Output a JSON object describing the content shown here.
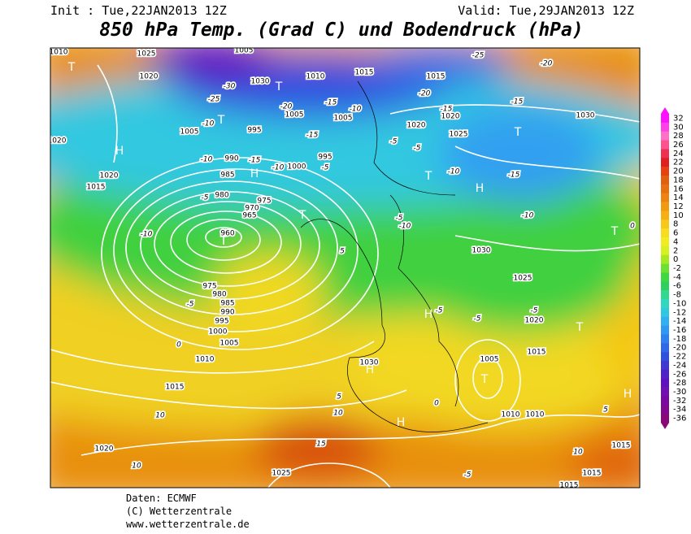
{
  "header": {
    "init": "Init : Tue,22JAN2013 12Z",
    "valid": "Valid: Tue,29JAN2013 12Z",
    "title": "850 hPa Temp. (Grad C) und Bodendruck (hPa)"
  },
  "colorbar": {
    "ticks": [
      32,
      30,
      28,
      26,
      24,
      22,
      20,
      18,
      16,
      14,
      12,
      10,
      8,
      6,
      4,
      2,
      0,
      -2,
      -4,
      -6,
      -8,
      -10,
      -12,
      -14,
      -16,
      -18,
      -20,
      -22,
      -24,
      -26,
      -28,
      -30,
      -32,
      -34,
      -36
    ],
    "colors": [
      "#ff10ff",
      "#ff40e8",
      "#ff70c8",
      "#ff5090",
      "#f03050",
      "#e02020",
      "#e84010",
      "#e06010",
      "#e87010",
      "#ee8410",
      "#f09a10",
      "#f4b014",
      "#f8c818",
      "#f8dc20",
      "#f0ec20",
      "#d8f020",
      "#a8e820",
      "#70e030",
      "#40d840",
      "#30d060",
      "#30d890",
      "#30d8c0",
      "#30c8e0",
      "#30b0f0",
      "#3098f0",
      "#3080f0",
      "#3068e8",
      "#3050e0",
      "#4038d0",
      "#5020c8",
      "#6010c0",
      "#7010b0",
      "#7808a0",
      "#800890",
      "#880878"
    ]
  },
  "pressure_labels": [
    "1025",
    "1020",
    "1005",
    "1030",
    "1010",
    "1015",
    "1015",
    "1005",
    "995",
    "990",
    "985",
    "980",
    "975",
    "970",
    "965",
    "960",
    "1005",
    "1005",
    "995",
    "1000",
    "1020",
    "1020",
    "1025",
    "1030",
    "1020",
    "1015",
    "975",
    "980",
    "985",
    "990",
    "995",
    "1000",
    "1005",
    "1010",
    "1015",
    "1030",
    "1030",
    "1025",
    "1020",
    "1015",
    "1005",
    "1010",
    "1010",
    "1020",
    "1025",
    "1015",
    "1015",
    "1015",
    "1010",
    "1020"
  ],
  "temperature_labels": [
    "-25",
    "-20",
    "-30",
    "-25",
    "-20",
    "-15",
    "-10",
    "-15",
    "-15",
    "-20",
    "-10",
    "-15",
    "-10",
    "-15",
    "-10",
    "-5",
    "-5",
    "-5",
    "-10",
    "-15",
    "-5",
    "-10",
    "-10",
    "-5",
    "-10",
    "5",
    "-5",
    "-5",
    "-5",
    "-5",
    "0",
    "5",
    "10",
    "0",
    "5",
    "10",
    "15",
    "10",
    "10",
    "-5",
    "0"
  ],
  "centers": [
    "T",
    "T",
    "T",
    "H",
    "H",
    "T",
    "H",
    "T",
    "T",
    "T",
    "T",
    "H",
    "H",
    "T",
    "T",
    "H",
    "H"
  ],
  "footer": {
    "source": "Daten: ECMWF",
    "copyright": "(C) Wetterzentrale",
    "url": "www.wetterzentrale.de"
  }
}
